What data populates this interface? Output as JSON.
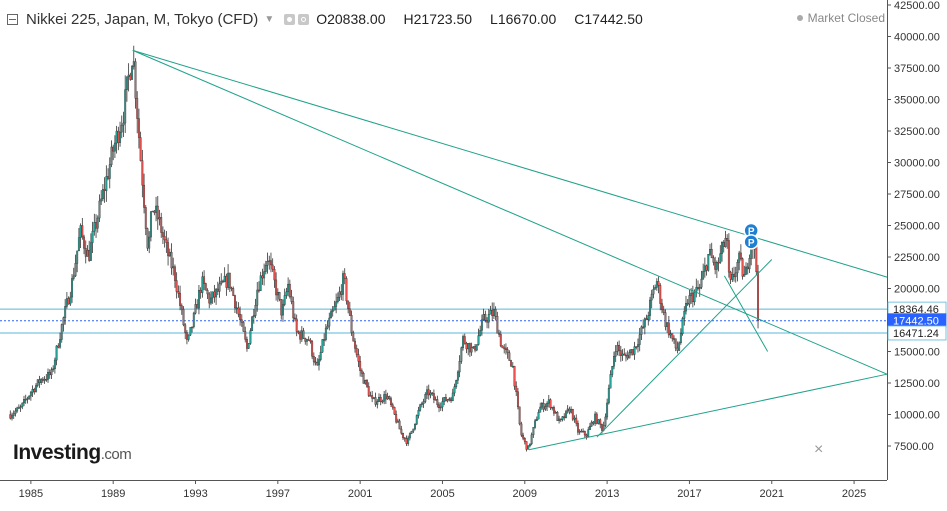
{
  "header": {
    "symbol": "Nikkei 225, Japan, M, Tokyo (CFD)",
    "open_label": "O",
    "open": "20838.00",
    "high_label": "H",
    "high": "21723.50",
    "low_label": "L",
    "low": "16670.00",
    "close_label": "C",
    "close": "17442.50",
    "status": "Market Closed"
  },
  "logo": {
    "brand": "Investing",
    "domain": ".com"
  },
  "close_symbol": "×",
  "colors": {
    "up": "#26a69a",
    "down": "#ef5350",
    "trendline": "#1fa28b",
    "hline": "#57b7d9",
    "badge": "#1f7fd1",
    "last_price": "#2962ff"
  },
  "chart_data": {
    "type": "candlestick",
    "interval": "monthly",
    "x_ticks": [
      "1985",
      "1989",
      "1993",
      "1997",
      "2001",
      "2005",
      "2009",
      "2013",
      "2017",
      "2021",
      "2025"
    ],
    "y_ticks": [
      "42500.00",
      "40000.00",
      "37500.00",
      "35000.00",
      "32500.00",
      "30000.00",
      "27500.00",
      "25000.00",
      "22500.00",
      "20000.00",
      "17500.00",
      "15000.00",
      "12500.00",
      "10000.00",
      "7500.00"
    ],
    "ylim": [
      5000,
      42500
    ],
    "xlim": [
      1983.5,
      2026.6
    ],
    "price_path": [
      [
        1984.0,
        10000
      ],
      [
        1984.5,
        10500
      ],
      [
        1985.0,
        11800
      ],
      [
        1985.5,
        12800
      ],
      [
        1986.0,
        13200
      ],
      [
        1986.5,
        17000
      ],
      [
        1987.0,
        20500
      ],
      [
        1987.4,
        24500
      ],
      [
        1987.8,
        22500
      ],
      [
        1988.0,
        24000
      ],
      [
        1988.5,
        27500
      ],
      [
        1989.0,
        31000
      ],
      [
        1989.5,
        34000
      ],
      [
        1989.95,
        38900
      ],
      [
        1990.3,
        31000
      ],
      [
        1990.7,
        23000
      ],
      [
        1990.9,
        26500
      ],
      [
        1991.2,
        25500
      ],
      [
        1991.6,
        23000
      ],
      [
        1992.0,
        21000
      ],
      [
        1992.6,
        15500
      ],
      [
        1992.9,
        17500
      ],
      [
        1993.3,
        20500
      ],
      [
        1993.7,
        19000
      ],
      [
        1994.2,
        20000
      ],
      [
        1994.6,
        20800
      ],
      [
        1995.0,
        18500
      ],
      [
        1995.5,
        15200
      ],
      [
        1996.0,
        20000
      ],
      [
        1996.5,
        22500
      ],
      [
        1996.9,
        20000
      ],
      [
        1997.2,
        18000
      ],
      [
        1997.5,
        20300
      ],
      [
        1997.9,
        16500
      ],
      [
        1998.5,
        16000
      ],
      [
        1998.9,
        13500
      ],
      [
        1999.3,
        16500
      ],
      [
        1999.9,
        19000
      ],
      [
        2000.2,
        20800
      ],
      [
        2000.6,
        16500
      ],
      [
        2001.0,
        13500
      ],
      [
        2001.6,
        11000
      ],
      [
        2002.3,
        11500
      ],
      [
        2003.0,
        8500
      ],
      [
        2003.3,
        7800
      ],
      [
        2003.9,
        10500
      ],
      [
        2004.3,
        11800
      ],
      [
        2004.8,
        10800
      ],
      [
        2005.5,
        11500
      ],
      [
        2006.0,
        16000
      ],
      [
        2006.5,
        15000
      ],
      [
        2007.0,
        17500
      ],
      [
        2007.5,
        18100
      ],
      [
        2007.9,
        15300
      ],
      [
        2008.4,
        14000
      ],
      [
        2008.8,
        8500
      ],
      [
        2009.15,
        7200
      ],
      [
        2009.7,
        10500
      ],
      [
        2010.2,
        11000
      ],
      [
        2010.7,
        9300
      ],
      [
        2011.2,
        10500
      ],
      [
        2011.6,
        8600
      ],
      [
        2012.0,
        8400
      ],
      [
        2012.4,
        9800
      ],
      [
        2012.8,
        8800
      ],
      [
        2013.0,
        11000
      ],
      [
        2013.4,
        15500
      ],
      [
        2013.8,
        14500
      ],
      [
        2014.3,
        15200
      ],
      [
        2014.9,
        17500
      ],
      [
        2015.4,
        20700
      ],
      [
        2015.8,
        17500
      ],
      [
        2016.4,
        15000
      ],
      [
        2016.9,
        19000
      ],
      [
        2017.5,
        20000
      ],
      [
        2017.95,
        22800
      ],
      [
        2018.3,
        21500
      ],
      [
        2018.8,
        24200
      ],
      [
        2018.95,
        20000
      ],
      [
        2019.4,
        22300
      ],
      [
        2019.7,
        20700
      ],
      [
        2020.0,
        24000
      ],
      [
        2020.2,
        22800
      ],
      [
        2020.4,
        17442.5
      ]
    ],
    "trendlines": [
      {
        "from": [
          1989.95,
          38900
        ],
        "to": [
          2026.6,
          20900
        ]
      },
      {
        "from": [
          1989.95,
          38900
        ],
        "to": [
          2026.6,
          13200
        ]
      },
      {
        "from": [
          2009.2,
          7200
        ],
        "to": [
          2026.6,
          13200
        ]
      },
      {
        "from": [
          2012.5,
          8200
        ],
        "to": [
          2021.0,
          22300
        ]
      },
      {
        "from": [
          2018.7,
          21000
        ],
        "to": [
          2020.8,
          15000
        ]
      }
    ],
    "horizontal_lines": [
      18364.46,
      16471.24
    ],
    "price_labels": [
      "18364.46",
      "17442.50",
      "16471.24"
    ],
    "last_price": 17442.5,
    "markers": [
      {
        "label": "P",
        "x": 2020.0,
        "y": 24600
      },
      {
        "label": "P",
        "x": 2020.0,
        "y": 23700
      }
    ]
  }
}
